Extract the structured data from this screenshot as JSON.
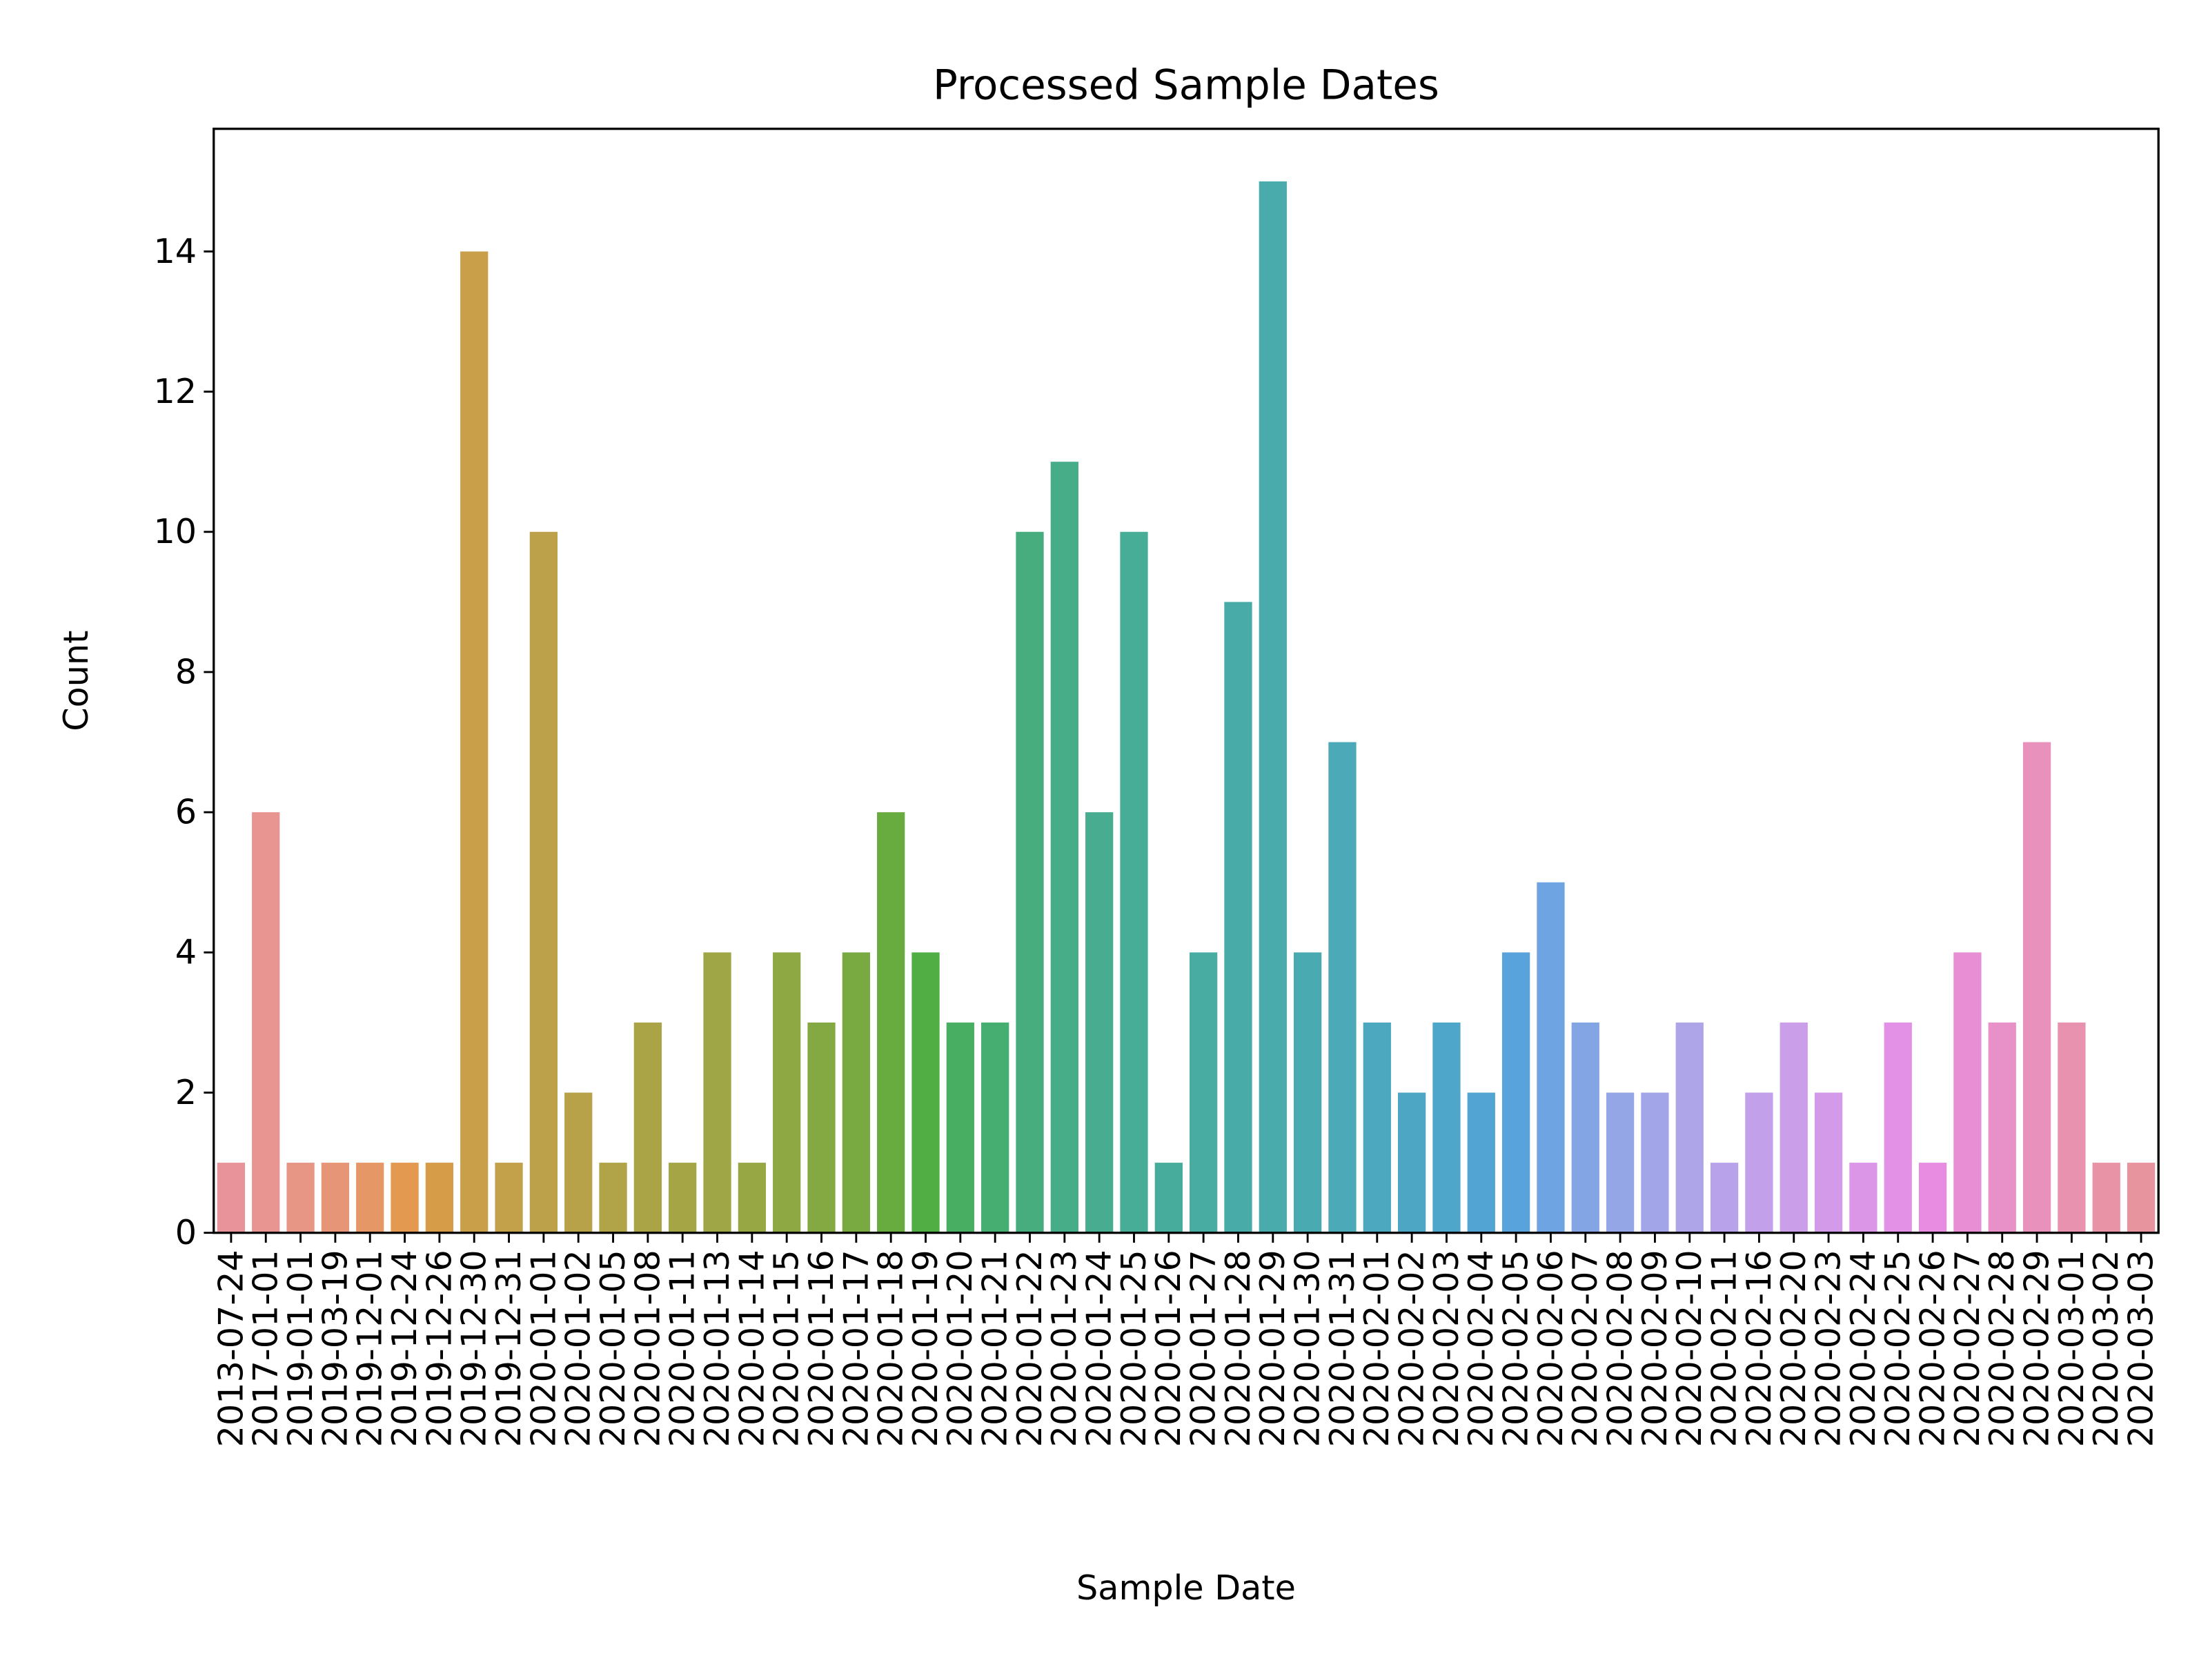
{
  "chart_data": {
    "type": "bar",
    "title": "Processed Sample Dates",
    "x_label": "Sample Date",
    "y_label": "Count",
    "categories": [
      "2013-07-24",
      "2017-01-01",
      "2019-01-01",
      "2019-03-19",
      "2019-12-01",
      "2019-12-24",
      "2019-12-26",
      "2019-12-30",
      "2019-12-31",
      "2020-01-01",
      "2020-01-02",
      "2020-01-05",
      "2020-01-08",
      "2020-01-11",
      "2020-01-13",
      "2020-01-14",
      "2020-01-15",
      "2020-01-16",
      "2020-01-17",
      "2020-01-18",
      "2020-01-19",
      "2020-01-20",
      "2020-01-21",
      "2020-01-22",
      "2020-01-23",
      "2020-01-24",
      "2020-01-25",
      "2020-01-26",
      "2020-01-27",
      "2020-01-28",
      "2020-01-29",
      "2020-01-30",
      "2020-01-31",
      "2020-02-01",
      "2020-02-02",
      "2020-02-03",
      "2020-02-04",
      "2020-02-05",
      "2020-02-06",
      "2020-02-07",
      "2020-02-08",
      "2020-02-09",
      "2020-02-10",
      "2020-02-11",
      "2020-02-16",
      "2020-02-20",
      "2020-02-23",
      "2020-02-24",
      "2020-02-25",
      "2020-02-26",
      "2020-02-27",
      "2020-02-28",
      "2020-02-29",
      "2020-03-01",
      "2020-03-02",
      "2020-03-03"
    ],
    "values": [
      1,
      6,
      1,
      1,
      1,
      1,
      1,
      14,
      1,
      10,
      2,
      1,
      3,
      1,
      4,
      1,
      4,
      3,
      4,
      6,
      4,
      3,
      3,
      10,
      11,
      6,
      10,
      1,
      4,
      9,
      15,
      4,
      7,
      3,
      2,
      3,
      2,
      4,
      5,
      3,
      2,
      2,
      3,
      1,
      2,
      3,
      2,
      1,
      3,
      1,
      4,
      3,
      7,
      3,
      1,
      1
    ],
    "colors": [
      "#e8939a",
      "#e89490",
      "#e79584",
      "#e69676",
      "#e59866",
      "#e39a50",
      "#d79c47",
      "#c99f49",
      "#c3a04a",
      "#bda14a",
      "#b7a249",
      "#b1a348",
      "#aba447",
      "#a5a546",
      "#9ea645",
      "#96a744",
      "#8ea843",
      "#84a942",
      "#78aa41",
      "#68ac40",
      "#50ae44",
      "#47ae62",
      "#47ae72",
      "#47ad7e",
      "#47ad88",
      "#48ad90",
      "#48ad97",
      "#48ac9d",
      "#49aca3",
      "#49aba8",
      "#4aabad",
      "#4aaab2",
      "#4ba9b8",
      "#4ca8be",
      "#4da7c4",
      "#4fa6cb",
      "#52a5d3",
      "#58a3dc",
      "#6ea4e2",
      "#83a5e4",
      "#94a6e6",
      "#a2a6e8",
      "#aea5e9",
      "#b8a3ea",
      "#c2a0ea",
      "#cb9eea",
      "#d39ae9",
      "#db96e8",
      "#e291e6",
      "#e88ce2",
      "#e88ed5",
      "#e890c8",
      "#e891bc",
      "#e892b0",
      "#e893a6",
      "#e8949e"
    ],
    "ylim": [
      0,
      15.75
    ],
    "yticks": [
      0,
      2,
      4,
      6,
      8,
      10,
      12,
      14
    ],
    "grid": false
  }
}
